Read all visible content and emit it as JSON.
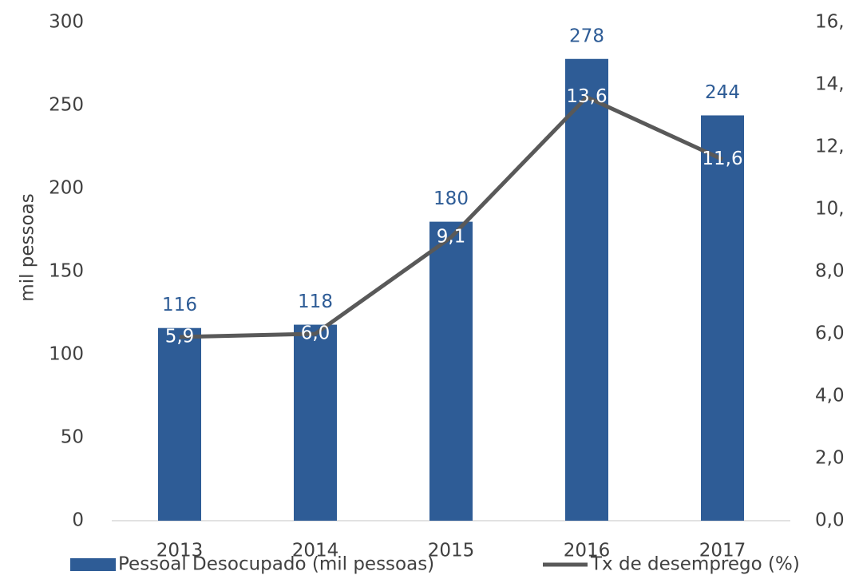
{
  "chart_data": {
    "type": "bar_line",
    "categories": [
      "2013",
      "2014",
      "2015",
      "2016",
      "2017"
    ],
    "series": [
      {
        "name": "Pessoal Desocupado (mil pessoas)",
        "type": "bar",
        "color": "#2e5c96",
        "values": [
          116,
          118,
          180,
          278,
          244
        ]
      },
      {
        "name": "Tx de desemprego (%)",
        "type": "line",
        "axis": "y2",
        "color": "#595959",
        "values": [
          5.9,
          6.0,
          9.1,
          13.6,
          11.6
        ],
        "value_labels": [
          "5,9",
          "6,0",
          "9,1",
          "13,6",
          "11,6"
        ]
      }
    ],
    "ylabel": "mil pessoas",
    "ylim": [
      0,
      300
    ],
    "yticks": [
      0,
      50,
      100,
      150,
      200,
      250,
      300
    ],
    "y2lim": [
      0,
      16
    ],
    "y2ticks": [
      {
        "value": 0,
        "label": "0,0"
      },
      {
        "value": 2,
        "label": "2,0"
      },
      {
        "value": 4,
        "label": "4,0"
      },
      {
        "value": 6,
        "label": "6,0"
      },
      {
        "value": 8,
        "label": "8,0"
      },
      {
        "value": 10,
        "label": "10,"
      },
      {
        "value": 12,
        "label": "12,"
      },
      {
        "value": 14,
        "label": "14,"
      },
      {
        "value": 16,
        "label": "16,"
      }
    ],
    "legend": "bottom"
  }
}
